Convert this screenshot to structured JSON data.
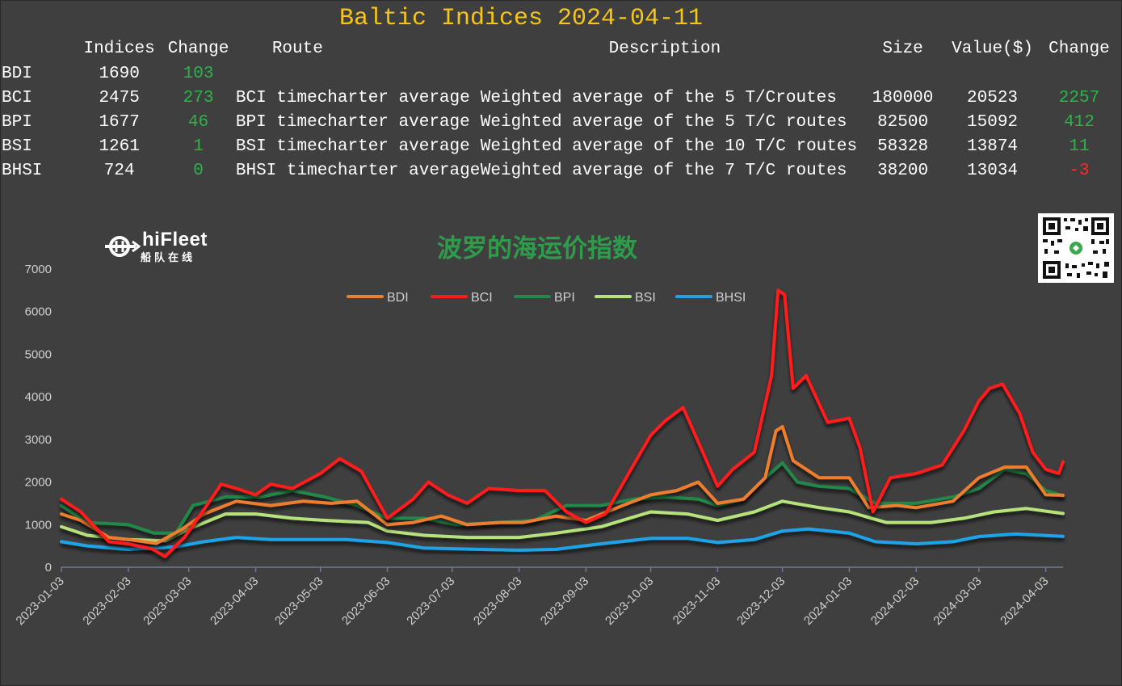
{
  "header": {
    "title": "Baltic Indices 2024-04-11",
    "columns": {
      "indices": "Indices",
      "change": "Change",
      "route": "Route",
      "description": "Description",
      "size": "Size",
      "value": "Value($)",
      "change2": "Change"
    }
  },
  "indices_table": [
    {
      "name": "BDI",
      "index": "1690",
      "change": "103",
      "route": "",
      "description": "",
      "size": "",
      "value": "",
      "value_change": ""
    },
    {
      "name": "BCI",
      "index": "2475",
      "change": "273",
      "route": "BCI timecharter average",
      "description": "Weighted average of the 5 T/Croutes",
      "size": "180000",
      "value": "20523",
      "value_change": "2257"
    },
    {
      "name": "BPI",
      "index": "1677",
      "change": "46",
      "route": "BPI timecharter average",
      "description": "Weighted average of the 5 T/C routes",
      "size": "82500",
      "value": "15092",
      "value_change": "412"
    },
    {
      "name": "BSI",
      "index": "1261",
      "change": "1",
      "route": "BSI timecharter average",
      "description": "Weighted average of the 10 T/C routes",
      "size": "58328",
      "value": "13874",
      "value_change": "11"
    },
    {
      "name": "BHSI",
      "index": "724",
      "change": "0",
      "route": "BHSI timecharter average",
      "description": "Weighted average of the 7 T/C routes",
      "size": "38200",
      "value": "13034",
      "value_change": "-3"
    }
  ],
  "logo": {
    "name": "hiFleet",
    "subtitle": "船队在线"
  },
  "qr_code": {
    "icon": "qr-code-icon"
  },
  "colors": {
    "background": "#3f3f3f",
    "title": "#f5c518",
    "positive": "#2db34a",
    "negative": "#ff2a2a",
    "chart_title": "#2e9d4b"
  },
  "chart_data": {
    "type": "line",
    "title": "波罗的海运价指数",
    "ylim": [
      0,
      7000
    ],
    "yticks": [
      0,
      1000,
      2000,
      3000,
      4000,
      5000,
      6000,
      7000
    ],
    "xlim": [
      "2023-01-03",
      "2024-04-11"
    ],
    "xticks": [
      "2023-01-03",
      "2023-02-03",
      "2023-03-03",
      "2023-04-03",
      "2023-05-03",
      "2023-06-03",
      "2023-07-03",
      "2023-08-03",
      "2023-09-03",
      "2023-10-03",
      "2023-11-03",
      "2023-12-03",
      "2024-01-03",
      "2024-02-03",
      "2024-03-03",
      "2024-04-03"
    ],
    "grid": false,
    "legend_position": "top-center",
    "series": [
      {
        "name": "BDI",
        "color": "#ee7d2e",
        "points": [
          [
            "2023-01-03",
            1250
          ],
          [
            "2023-01-12",
            1100
          ],
          [
            "2023-01-25",
            700
          ],
          [
            "2023-02-03",
            650
          ],
          [
            "2023-02-16",
            560
          ],
          [
            "2023-02-28",
            900
          ],
          [
            "2023-03-10",
            1250
          ],
          [
            "2023-03-25",
            1550
          ],
          [
            "2023-04-10",
            1450
          ],
          [
            "2023-04-25",
            1550
          ],
          [
            "2023-05-08",
            1500
          ],
          [
            "2023-05-20",
            1550
          ],
          [
            "2023-06-03",
            1000
          ],
          [
            "2023-06-15",
            1050
          ],
          [
            "2023-06-28",
            1200
          ],
          [
            "2023-07-10",
            1000
          ],
          [
            "2023-07-25",
            1050
          ],
          [
            "2023-08-05",
            1050
          ],
          [
            "2023-08-20",
            1200
          ],
          [
            "2023-09-03",
            1100
          ],
          [
            "2023-09-20",
            1450
          ],
          [
            "2023-10-03",
            1700
          ],
          [
            "2023-10-15",
            1800
          ],
          [
            "2023-10-25",
            2000
          ],
          [
            "2023-11-03",
            1500
          ],
          [
            "2023-11-15",
            1600
          ],
          [
            "2023-11-25",
            2100
          ],
          [
            "2023-11-30",
            3200
          ],
          [
            "2023-12-03",
            3300
          ],
          [
            "2023-12-08",
            2500
          ],
          [
            "2023-12-20",
            2100
          ],
          [
            "2024-01-03",
            2100
          ],
          [
            "2024-01-12",
            1400
          ],
          [
            "2024-01-25",
            1450
          ],
          [
            "2024-02-03",
            1400
          ],
          [
            "2024-02-20",
            1550
          ],
          [
            "2024-03-03",
            2100
          ],
          [
            "2024-03-15",
            2350
          ],
          [
            "2024-03-25",
            2350
          ],
          [
            "2024-04-03",
            1700
          ],
          [
            "2024-04-11",
            1690
          ]
        ]
      },
      {
        "name": "BCI",
        "color": "#ff1a1a",
        "points": [
          [
            "2023-01-03",
            1600
          ],
          [
            "2023-01-12",
            1300
          ],
          [
            "2023-01-25",
            600
          ],
          [
            "2023-02-03",
            550
          ],
          [
            "2023-02-14",
            430
          ],
          [
            "2023-02-20",
            250
          ],
          [
            "2023-03-01",
            700
          ],
          [
            "2023-03-10",
            1350
          ],
          [
            "2023-03-18",
            1950
          ],
          [
            "2023-03-25",
            1850
          ],
          [
            "2023-04-03",
            1700
          ],
          [
            "2023-04-10",
            1950
          ],
          [
            "2023-04-20",
            1850
          ],
          [
            "2023-05-03",
            2200
          ],
          [
            "2023-05-12",
            2550
          ],
          [
            "2023-05-22",
            2250
          ],
          [
            "2023-06-03",
            1150
          ],
          [
            "2023-06-15",
            1600
          ],
          [
            "2023-06-22",
            2000
          ],
          [
            "2023-07-01",
            1700
          ],
          [
            "2023-07-10",
            1500
          ],
          [
            "2023-07-20",
            1850
          ],
          [
            "2023-08-03",
            1800
          ],
          [
            "2023-08-15",
            1800
          ],
          [
            "2023-08-25",
            1300
          ],
          [
            "2023-09-03",
            1050
          ],
          [
            "2023-09-12",
            1250
          ],
          [
            "2023-09-25",
            2400
          ],
          [
            "2023-10-03",
            3100
          ],
          [
            "2023-10-10",
            3450
          ],
          [
            "2023-10-18",
            3750
          ],
          [
            "2023-10-28",
            2600
          ],
          [
            "2023-11-03",
            1900
          ],
          [
            "2023-11-10",
            2300
          ],
          [
            "2023-11-20",
            2700
          ],
          [
            "2023-11-28",
            4500
          ],
          [
            "2023-12-01",
            6500
          ],
          [
            "2023-12-04",
            6400
          ],
          [
            "2023-12-08",
            4200
          ],
          [
            "2023-12-14",
            4500
          ],
          [
            "2023-12-24",
            3400
          ],
          [
            "2024-01-03",
            3500
          ],
          [
            "2024-01-08",
            2800
          ],
          [
            "2024-01-14",
            1300
          ],
          [
            "2024-01-22",
            2100
          ],
          [
            "2024-02-03",
            2200
          ],
          [
            "2024-02-15",
            2400
          ],
          [
            "2024-02-25",
            3200
          ],
          [
            "2024-03-03",
            3900
          ],
          [
            "2024-03-08",
            4200
          ],
          [
            "2024-03-14",
            4300
          ],
          [
            "2024-03-22",
            3600
          ],
          [
            "2024-03-28",
            2700
          ],
          [
            "2024-04-03",
            2300
          ],
          [
            "2024-04-09",
            2200
          ],
          [
            "2024-04-11",
            2475
          ]
        ]
      },
      {
        "name": "BPI",
        "color": "#23884a",
        "points": [
          [
            "2023-01-03",
            1450
          ],
          [
            "2023-01-15",
            1050
          ],
          [
            "2023-02-03",
            1000
          ],
          [
            "2023-02-15",
            800
          ],
          [
            "2023-02-25",
            800
          ],
          [
            "2023-03-05",
            1450
          ],
          [
            "2023-03-20",
            1650
          ],
          [
            "2023-04-05",
            1650
          ],
          [
            "2023-04-20",
            1800
          ],
          [
            "2023-05-05",
            1650
          ],
          [
            "2023-05-20",
            1450
          ],
          [
            "2023-06-03",
            1150
          ],
          [
            "2023-06-20",
            1150
          ],
          [
            "2023-07-05",
            1000
          ],
          [
            "2023-07-25",
            1050
          ],
          [
            "2023-08-10",
            1100
          ],
          [
            "2023-08-25",
            1450
          ],
          [
            "2023-09-10",
            1450
          ],
          [
            "2023-09-25",
            1600
          ],
          [
            "2023-10-10",
            1650
          ],
          [
            "2023-10-25",
            1600
          ],
          [
            "2023-11-03",
            1450
          ],
          [
            "2023-11-15",
            1600
          ],
          [
            "2023-11-25",
            2100
          ],
          [
            "2023-12-03",
            2450
          ],
          [
            "2023-12-10",
            2000
          ],
          [
            "2023-12-20",
            1900
          ],
          [
            "2024-01-03",
            1850
          ],
          [
            "2024-01-15",
            1500
          ],
          [
            "2024-02-03",
            1500
          ],
          [
            "2024-02-20",
            1650
          ],
          [
            "2024-03-03",
            1850
          ],
          [
            "2024-03-15",
            2300
          ],
          [
            "2024-03-25",
            2200
          ],
          [
            "2024-04-03",
            1800
          ],
          [
            "2024-04-11",
            1677
          ]
        ]
      },
      {
        "name": "BSI",
        "color": "#b5e27a",
        "points": [
          [
            "2023-01-03",
            950
          ],
          [
            "2023-01-15",
            750
          ],
          [
            "2023-02-03",
            650
          ],
          [
            "2023-02-20",
            620
          ],
          [
            "2023-03-03",
            900
          ],
          [
            "2023-03-20",
            1250
          ],
          [
            "2023-04-03",
            1250
          ],
          [
            "2023-04-20",
            1150
          ],
          [
            "2023-05-05",
            1100
          ],
          [
            "2023-05-25",
            1050
          ],
          [
            "2023-06-03",
            850
          ],
          [
            "2023-06-20",
            750
          ],
          [
            "2023-07-10",
            700
          ],
          [
            "2023-08-03",
            700
          ],
          [
            "2023-08-20",
            800
          ],
          [
            "2023-09-10",
            950
          ],
          [
            "2023-10-03",
            1300
          ],
          [
            "2023-10-20",
            1250
          ],
          [
            "2023-11-03",
            1100
          ],
          [
            "2023-11-20",
            1300
          ],
          [
            "2023-12-03",
            1550
          ],
          [
            "2023-12-20",
            1400
          ],
          [
            "2024-01-03",
            1300
          ],
          [
            "2024-01-20",
            1050
          ],
          [
            "2024-02-10",
            1050
          ],
          [
            "2024-02-25",
            1150
          ],
          [
            "2024-03-10",
            1300
          ],
          [
            "2024-03-25",
            1380
          ],
          [
            "2024-04-11",
            1261
          ]
        ]
      },
      {
        "name": "BHSI",
        "color": "#1fa3e8",
        "points": [
          [
            "2023-01-03",
            600
          ],
          [
            "2023-01-15",
            500
          ],
          [
            "2023-02-03",
            420
          ],
          [
            "2023-02-25",
            480
          ],
          [
            "2023-03-10",
            600
          ],
          [
            "2023-03-25",
            700
          ],
          [
            "2023-04-10",
            650
          ],
          [
            "2023-04-25",
            650
          ],
          [
            "2023-05-15",
            650
          ],
          [
            "2023-06-03",
            580
          ],
          [
            "2023-06-20",
            450
          ],
          [
            "2023-07-15",
            420
          ],
          [
            "2023-08-03",
            400
          ],
          [
            "2023-08-20",
            420
          ],
          [
            "2023-09-10",
            550
          ],
          [
            "2023-10-03",
            680
          ],
          [
            "2023-10-20",
            680
          ],
          [
            "2023-11-03",
            580
          ],
          [
            "2023-11-20",
            650
          ],
          [
            "2023-12-03",
            850
          ],
          [
            "2023-12-15",
            900
          ],
          [
            "2024-01-03",
            800
          ],
          [
            "2024-01-15",
            600
          ],
          [
            "2024-02-03",
            550
          ],
          [
            "2024-02-20",
            600
          ],
          [
            "2024-03-03",
            720
          ],
          [
            "2024-03-20",
            780
          ],
          [
            "2024-04-11",
            724
          ]
        ]
      }
    ]
  }
}
